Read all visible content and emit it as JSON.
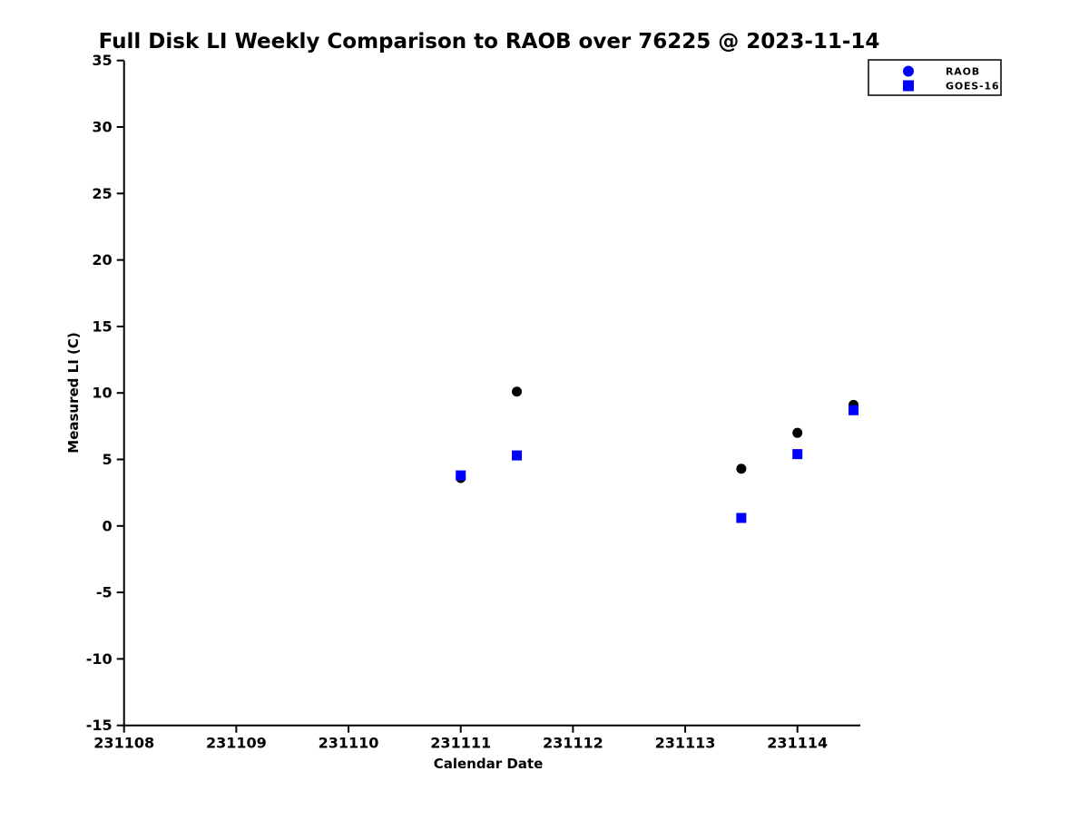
{
  "title": "Full Disk LI Weekly Comparison to RAOB over 76225 @ 2023-11-14",
  "colors": {
    "accent_blue": "#0000ff",
    "marker_black": "#000000",
    "axis": "#000000",
    "background": "#ffffff",
    "legend_border": "#000000"
  },
  "legend": {
    "position": "top-right",
    "items": [
      {
        "label": "RAOB",
        "marker": "circle",
        "color": "#0000ff"
      },
      {
        "label": "GOES-16",
        "marker": "square",
        "color": "#0000ff"
      }
    ]
  },
  "chart_data": {
    "type": "scatter",
    "title": "Full Disk LI Weekly Comparison to RAOB over 76225 @ 2023-11-14",
    "xlabel": "Calendar Date",
    "ylabel": "Measured LI (C)",
    "xlim": [
      231108,
      231114.6
    ],
    "ylim": [
      -15,
      35
    ],
    "x_ticks": [
      231108,
      231109,
      231110,
      231111,
      231112,
      231113,
      231114
    ],
    "y_ticks": [
      -15,
      -10,
      -5,
      0,
      5,
      10,
      15,
      20,
      25,
      30,
      35
    ],
    "grid": false,
    "legend_position": "top-right",
    "series": [
      {
        "name": "RAOB",
        "marker": "circle",
        "plot_color": "#000000",
        "legend_color": "#0000ff",
        "x": [
          231111,
          231111.5,
          231113.5,
          231114,
          231114.5
        ],
        "y": [
          3.6,
          10.1,
          4.3,
          7.0,
          9.1
        ]
      },
      {
        "name": "GOES-16",
        "marker": "square",
        "plot_color": "#0000ff",
        "legend_color": "#0000ff",
        "x": [
          231111,
          231111.5,
          231113.5,
          231114,
          231114.5
        ],
        "y": [
          3.8,
          5.3,
          0.6,
          5.4,
          8.7
        ]
      }
    ]
  }
}
